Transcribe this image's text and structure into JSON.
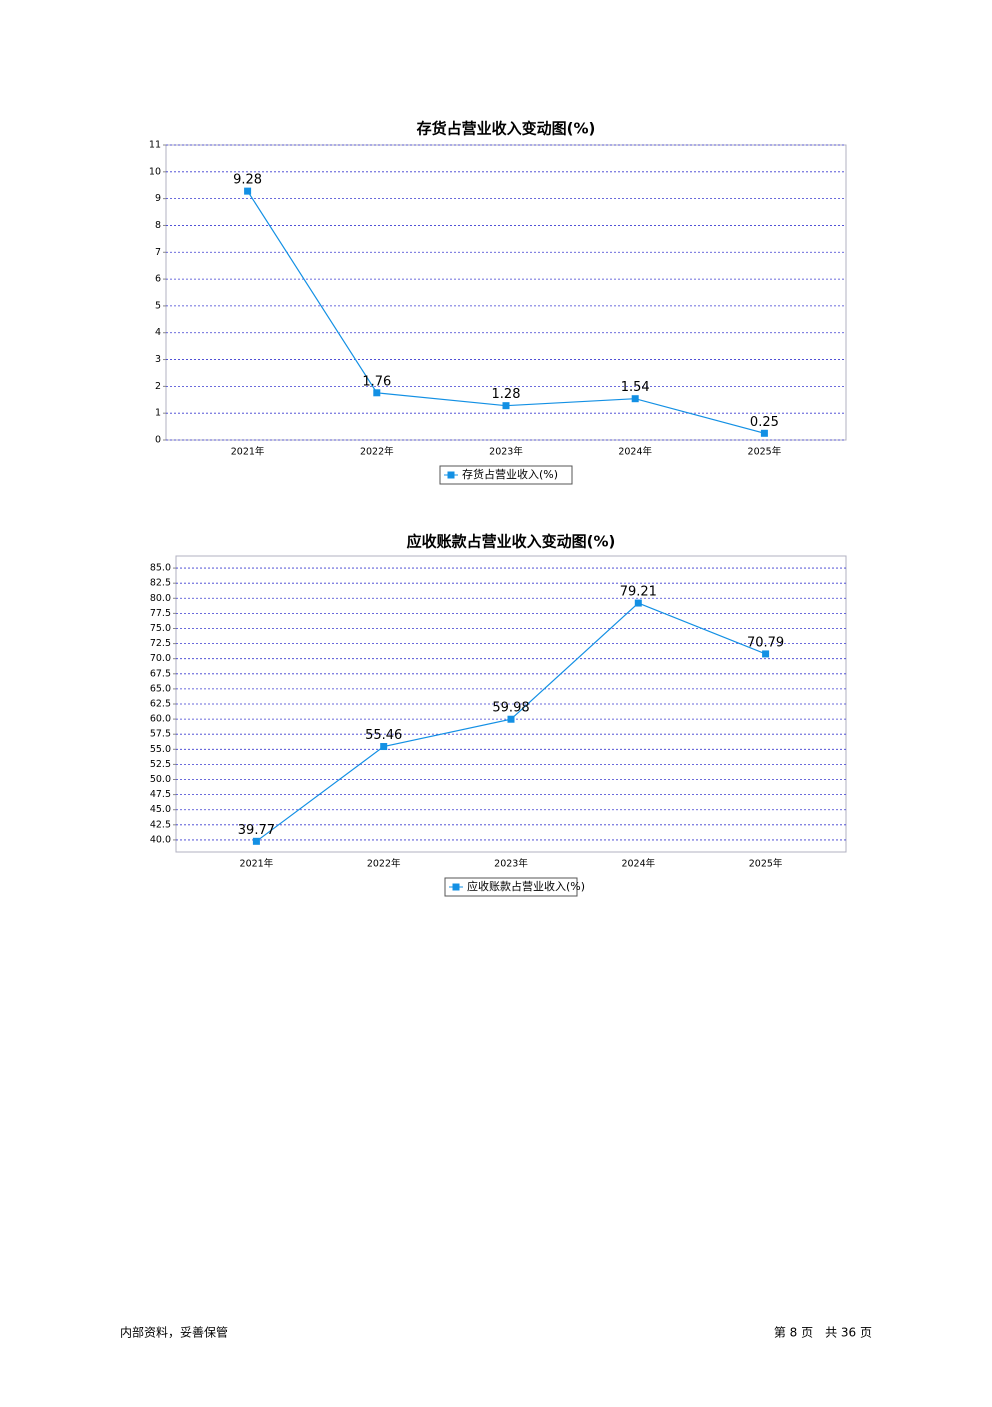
{
  "chart_data": [
    {
      "type": "line",
      "title": "存货占营业收入变动图(%)",
      "categories": [
        "2021年",
        "2022年",
        "2023年",
        "2024年",
        "2025年"
      ],
      "series": [
        {
          "name": "存货占营业收入(%)",
          "color": "#1390e4",
          "values": [
            9.28,
            1.76,
            1.28,
            1.54,
            0.25
          ]
        }
      ],
      "ylim": [
        0,
        11
      ],
      "yticks": [
        0,
        1,
        2,
        3,
        4,
        5,
        6,
        7,
        8,
        9,
        10,
        11
      ],
      "grid": true,
      "legend": "bottom"
    },
    {
      "type": "line",
      "title": "应收账款占营业收入变动图(%)",
      "categories": [
        "2021年",
        "2022年",
        "2023年",
        "2024年",
        "2025年"
      ],
      "series": [
        {
          "name": "应收账款占营业收入(%)",
          "color": "#1390e4",
          "values": [
            39.77,
            55.46,
            59.98,
            79.21,
            70.79
          ]
        }
      ],
      "ylim": [
        38,
        87
      ],
      "yticks": [
        {
          "value": 40,
          "label": "40.0"
        },
        42.5,
        {
          "value": 45,
          "label": "45.0"
        },
        47.5,
        {
          "value": 50,
          "label": "50.0"
        },
        52.5,
        {
          "value": 55,
          "label": "55.0"
        },
        57.5,
        {
          "value": 60,
          "label": "60.0"
        },
        62.5,
        {
          "value": 65,
          "label": "65.0"
        },
        67.5,
        {
          "value": 70,
          "label": "70.0"
        },
        72.5,
        {
          "value": 75,
          "label": "75.0"
        },
        77.5,
        {
          "value": 80,
          "label": "80.0"
        },
        82.5,
        {
          "value": 85,
          "label": "85.0"
        }
      ],
      "grid": true,
      "legend": "bottom"
    }
  ],
  "footer": {
    "left": "内部资料，妥善保管",
    "right": "第 8 页　共 36 页"
  }
}
